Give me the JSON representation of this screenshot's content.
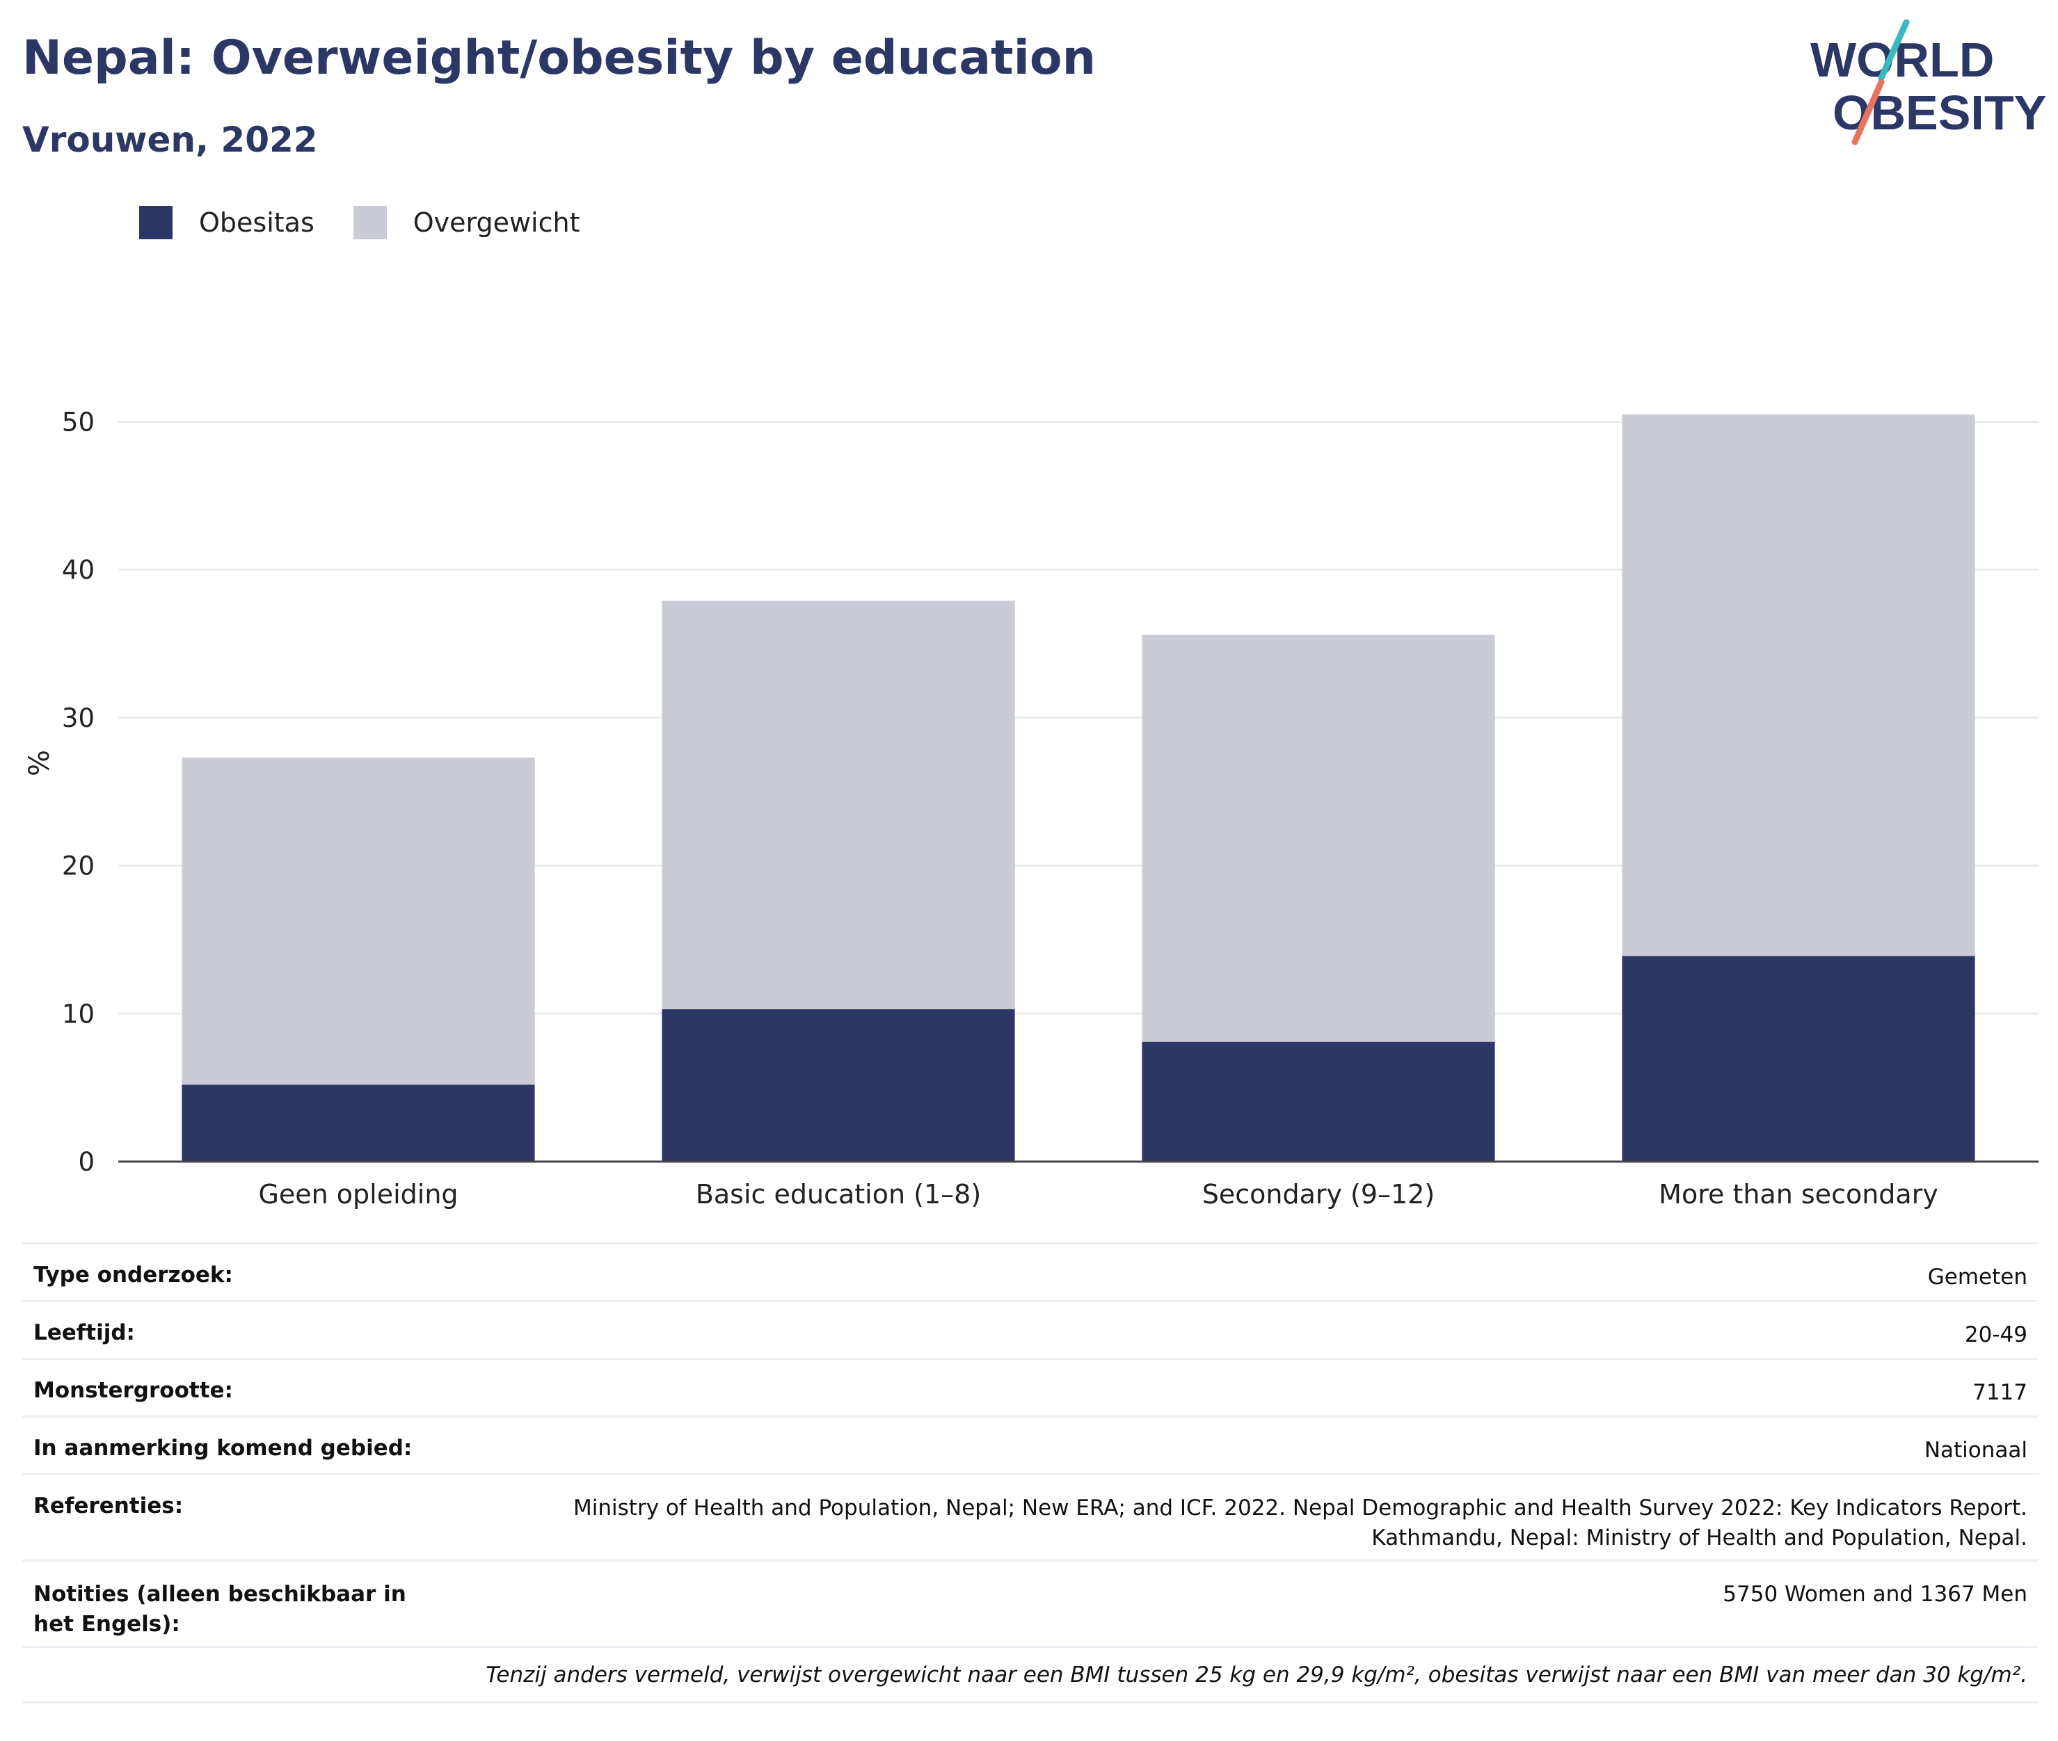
{
  "header": {
    "title": "Nepal: Overweight/obesity by education",
    "subtitle": "Vrouwen, 2022"
  },
  "logo": {
    "line1": "WORLD",
    "line2": "OBESITY"
  },
  "legend": {
    "items": [
      {
        "label": "Obesitas",
        "color": "#2b3764"
      },
      {
        "label": "Overgewicht",
        "color": "#c9cbd6"
      }
    ]
  },
  "chart_data": {
    "type": "bar",
    "stacked": true,
    "title": "Nepal: Overweight/obesity by education",
    "subtitle": "Vrouwen, 2022",
    "xlabel": "",
    "ylabel": "%",
    "ylim": [
      0,
      50
    ],
    "yticks": [
      0,
      10,
      20,
      30,
      40,
      50
    ],
    "grid": true,
    "legend_position": "top-left",
    "categories": [
      "Geen opleiding",
      "Basic education (1–8)",
      "Secondary (9–12)",
      "More than secondary"
    ],
    "series": [
      {
        "name": "Obesitas",
        "color": "#2b3764",
        "values": [
          5.2,
          10.3,
          8.1,
          13.9
        ]
      },
      {
        "name": "Overgewicht",
        "color": "#c9cbd6",
        "values": [
          22.1,
          27.6,
          27.5,
          36.6
        ]
      }
    ]
  },
  "details": {
    "rows": [
      {
        "key": "Type onderzoek:",
        "value": [
          "Gemeten"
        ]
      },
      {
        "key": "Leeftijd:",
        "value": [
          "20-49"
        ]
      },
      {
        "key": "Monstergrootte:",
        "value": [
          "7117"
        ]
      },
      {
        "key": "In aanmerking komend gebied:",
        "value": [
          "Nationaal"
        ]
      },
      {
        "key": "Referenties:",
        "value": [
          "Ministry of Health and Population, Nepal; New ERA; and ICF. 2022. Nepal Demographic and Health Survey 2022: Key Indicators Report.",
          "Kathmandu, Nepal: Ministry of Health and Population, Nepal."
        ]
      },
      {
        "key": "Notities (alleen beschikbaar in het Engels):",
        "value": [
          "5750 Women and 1367 Men"
        ]
      }
    ],
    "footnote": "Tenzij anders vermeld, verwijst overgewicht naar een BMI tussen 25 kg en 29,9 kg/m², obesitas verwijst naar een BMI van meer dan 30 kg/m²."
  }
}
